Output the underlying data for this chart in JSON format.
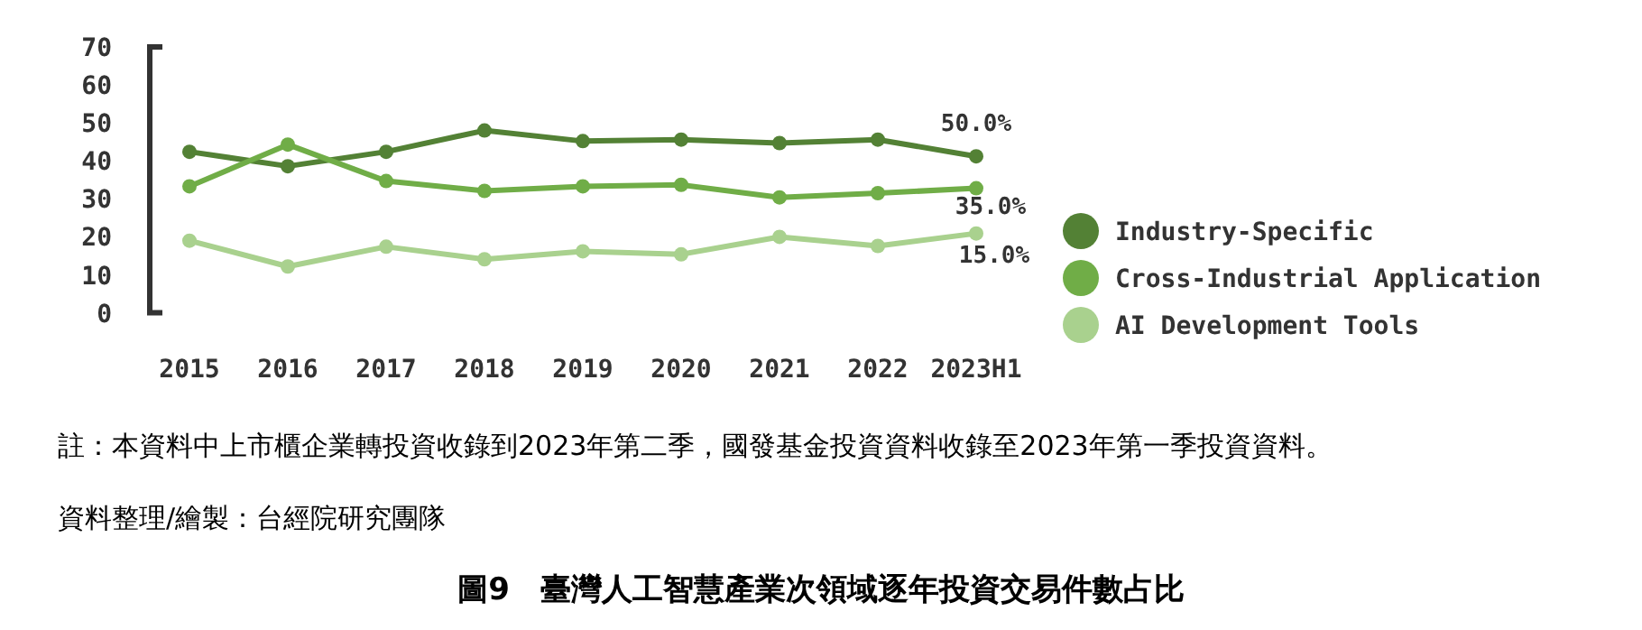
{
  "chart_data": {
    "type": "line",
    "title": "圖9　臺灣人工智慧產業次領域逐年投資交易件數占比",
    "categories": [
      "2015",
      "2016",
      "2017",
      "2018",
      "2019",
      "2020",
      "2021",
      "2022",
      "2023H1"
    ],
    "series": [
      {
        "name": "Industry-Specific",
        "color": "#538135",
        "values": [
          42.4,
          38.6,
          42.4,
          48.0,
          45.2,
          45.6,
          44.7,
          45.6,
          41.2
        ]
      },
      {
        "name": "Cross-Industrial Application",
        "color": "#70ad47",
        "values": [
          33.3,
          44.3,
          34.7,
          32.1,
          33.3,
          33.7,
          30.4,
          31.5,
          32.8
        ]
      },
      {
        "name": "AI Development Tools",
        "color": "#a9d18e",
        "values": [
          19.0,
          12.2,
          17.4,
          14.1,
          16.2,
          15.4,
          20.0,
          17.6,
          20.9
        ]
      }
    ],
    "ylim": [
      0,
      70
    ],
    "yticks": [
      0,
      10,
      20,
      30,
      40,
      50,
      60,
      70
    ],
    "grid": false,
    "legend": "right",
    "marker": "circle",
    "line_style": "solid",
    "annotations": [
      {
        "text": "50.0%",
        "x": "2023H1",
        "y": 41.2
      },
      {
        "text": "35.0%",
        "x": "2023H1",
        "y": 32.8
      },
      {
        "text": "15.0%",
        "x": "2023H1",
        "y": 20.9
      },
      "註：本資料中上市櫃企業轉投資收錄到2023年第二季，國發基金投資資料收錄至2023年第一季投資資料。",
      "資料整理/繪製：台經院研究團隊"
    ]
  }
}
